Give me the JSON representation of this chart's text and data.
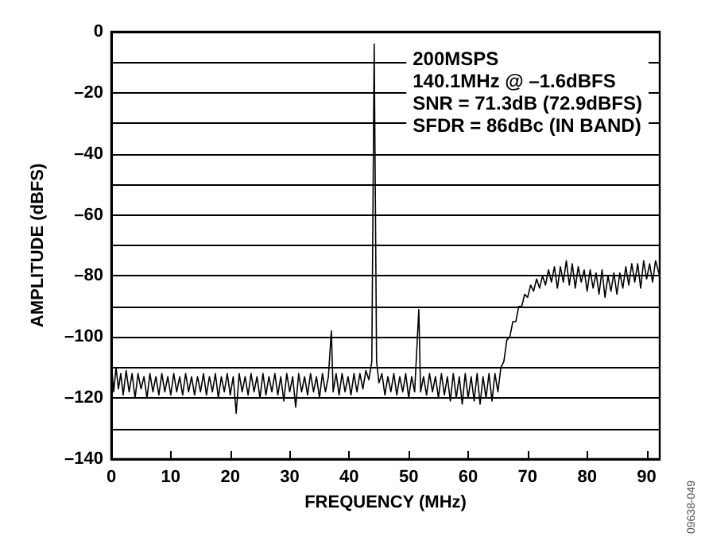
{
  "chart_data": {
    "type": "line",
    "xlabel": "FREQUENCY (MHz)",
    "ylabel": "AMPLITUDE (dBFS)",
    "annotations": [
      "200MSPS",
      "140.1MHz @ –1.6dBFS",
      "SNR = 71.3dB (72.9dBFS)",
      "SFDR = 86dBc (IN BAND)",
      "09638-049"
    ],
    "xlim": [
      0,
      92.2
    ],
    "xticks": [
      0,
      10,
      20,
      30,
      40,
      50,
      60,
      70,
      80,
      90
    ],
    "ylim": [
      -140,
      0
    ],
    "yticks": [
      {
        "value": -140,
        "label": "–140"
      },
      {
        "value": -130,
        "label": null
      },
      {
        "value": -120,
        "label": "–120"
      },
      {
        "value": -110,
        "label": null
      },
      {
        "value": -100,
        "label": "–100"
      },
      {
        "value": -90,
        "label": null
      },
      {
        "value": -80,
        "label": "–80"
      },
      {
        "value": -70,
        "label": null
      },
      {
        "value": -60,
        "label": "–60"
      },
      {
        "value": -50,
        "label": null
      },
      {
        "value": -40,
        "label": "–40"
      },
      {
        "value": -30,
        "label": null
      },
      {
        "value": -20,
        "label": "–20"
      },
      {
        "value": -10,
        "label": null
      },
      0
    ],
    "grid": "y",
    "series": [
      {
        "color": "#000000",
        "x": [
          0,
          0.4,
          0.8,
          1.2,
          1.6,
          2,
          2.5,
          3,
          3.5,
          4,
          4.5,
          5,
          5.5,
          6,
          6.5,
          7,
          7.5,
          8,
          8.5,
          9,
          9.5,
          10,
          10.5,
          11,
          11.5,
          12,
          12.5,
          13,
          13.5,
          14,
          14.5,
          15,
          15.5,
          16,
          16.5,
          17,
          17.5,
          18,
          18.5,
          19,
          19.5,
          20,
          20.5,
          21,
          21.5,
          22,
          22.5,
          23,
          23.5,
          24,
          24.5,
          25,
          25.5,
          26,
          26.5,
          27,
          27.5,
          28,
          28.5,
          29,
          29.5,
          30,
          30.5,
          31,
          31.5,
          32,
          32.5,
          33,
          33.5,
          34,
          34.5,
          35,
          35.5,
          36,
          36.5,
          37,
          37.3,
          37.8,
          38.3,
          38.8,
          39.3,
          39.8,
          40.3,
          40.8,
          41.3,
          41.8,
          42.3,
          42.8,
          43.3,
          43.8,
          44.2,
          44.6,
          45,
          45.5,
          46,
          46.5,
          47,
          47.5,
          48,
          48.5,
          49,
          49.5,
          50,
          50.5,
          51,
          51.7,
          52,
          52.5,
          53,
          53.5,
          54,
          54.5,
          55,
          55.5,
          56,
          56.5,
          57,
          57.5,
          58,
          58.5,
          59,
          59.5,
          60,
          60.5,
          61,
          61.5,
          62,
          62.5,
          63,
          63.5,
          64,
          64.5,
          65,
          65.5,
          66,
          66.5,
          67,
          67.5,
          68,
          68.5,
          69,
          69.5,
          70,
          70.5,
          71,
          71.5,
          72,
          72.5,
          73,
          73.5,
          74,
          74.5,
          75,
          75.5,
          76,
          76.5,
          77,
          77.5,
          78,
          78.5,
          79,
          79.5,
          80,
          80.5,
          81,
          81.5,
          82,
          82.5,
          83,
          83.5,
          84,
          84.5,
          85,
          85.5,
          86,
          86.5,
          87,
          87.5,
          88,
          88.5,
          89,
          89.5,
          90,
          90.5,
          91,
          91.5,
          92.2
        ],
        "values": [
          -108,
          -118,
          -110,
          -117,
          -112,
          -119,
          -111,
          -118,
          -112,
          -120,
          -112,
          -117,
          -113,
          -120,
          -112,
          -118,
          -113,
          -119,
          -112,
          -118,
          -113,
          -119,
          -112,
          -118,
          -113,
          -119,
          -112,
          -118,
          -113,
          -119,
          -113,
          -118,
          -112,
          -119,
          -113,
          -118,
          -112,
          -120,
          -113,
          -118,
          -112,
          -119,
          -113,
          -125,
          -112,
          -118,
          -113,
          -119,
          -112,
          -118,
          -113,
          -120,
          -112,
          -119,
          -113,
          -118,
          -112,
          -119,
          -113,
          -121,
          -112,
          -118,
          -113,
          -123,
          -112,
          -118,
          -113,
          -119,
          -112,
          -118,
          -113,
          -120,
          -112,
          -118,
          -113,
          -98,
          -118,
          -112,
          -119,
          -112,
          -118,
          -113,
          -119,
          -112,
          -118,
          -112,
          -117,
          -111,
          -114,
          -108,
          -4,
          -108,
          -115,
          -112,
          -119,
          -113,
          -118,
          -112,
          -119,
          -113,
          -118,
          -112,
          -120,
          -113,
          -118,
          -91,
          -118,
          -113,
          -119,
          -112,
          -118,
          -113,
          -120,
          -112,
          -119,
          -113,
          -121,
          -112,
          -120,
          -113,
          -122,
          -112,
          -120,
          -113,
          -121,
          -112,
          -122,
          -113,
          -120,
          -112,
          -121,
          -112,
          -118,
          -110,
          -108,
          -101,
          -100,
          -95,
          -95,
          -90,
          -90,
          -86,
          -87,
          -83,
          -85,
          -81,
          -84,
          -80,
          -83,
          -78,
          -82,
          -77,
          -84,
          -77,
          -82,
          -75,
          -83,
          -76,
          -84,
          -77,
          -82,
          -78,
          -85,
          -78,
          -84,
          -79,
          -86,
          -78,
          -87,
          -80,
          -85,
          -79,
          -86,
          -79,
          -84,
          -77,
          -83,
          -76,
          -82,
          -76,
          -84,
          -75,
          -81,
          -76,
          -82,
          -75,
          -80
        ]
      }
    ]
  }
}
